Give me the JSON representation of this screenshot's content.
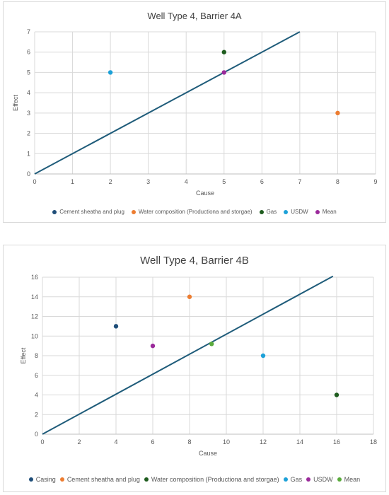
{
  "chart_data": [
    {
      "type": "scatter",
      "title": "Well Type 4, Barrier 4A",
      "xlabel": "Cause",
      "ylabel": "Effect",
      "xlim": [
        0,
        9
      ],
      "ylim": [
        0,
        7
      ],
      "xticks": [
        "0",
        "1",
        "2",
        "3",
        "4",
        "5",
        "6",
        "7",
        "8",
        "9"
      ],
      "yticks": [
        "0",
        "1",
        "2",
        "3",
        "4",
        "5",
        "6",
        "7"
      ],
      "grid": true,
      "legend_position": "bottom",
      "reference_line": {
        "x": [
          0,
          7
        ],
        "y": [
          0,
          7
        ],
        "color": "#1f5c7a"
      },
      "series": [
        {
          "name": "Cement sheatha and plug",
          "color": "#1f4e79",
          "points": []
        },
        {
          "name": "Water composition (Productiona and storgae)",
          "color": "#ed7d31",
          "points": [
            [
              8,
              3
            ]
          ]
        },
        {
          "name": "Gas",
          "color": "#1e5c1e",
          "points": [
            [
              5,
              6
            ]
          ]
        },
        {
          "name": "USDW",
          "color": "#1da1d8",
          "points": [
            [
              2,
              5
            ]
          ]
        },
        {
          "name": "Mean",
          "color": "#9b2a9b",
          "points": [
            [
              5,
              5
            ]
          ]
        }
      ]
    },
    {
      "type": "scatter",
      "title": "Well Type 4, Barrier 4B",
      "xlabel": "Cause",
      "ylabel": "Effect",
      "xlim": [
        0,
        18
      ],
      "ylim": [
        0,
        16
      ],
      "xticks": [
        "0",
        "2",
        "4",
        "6",
        "8",
        "10",
        "12",
        "14",
        "16",
        "18"
      ],
      "yticks": [
        "0",
        "2",
        "4",
        "6",
        "8",
        "10",
        "12",
        "14",
        "16"
      ],
      "grid": true,
      "legend_position": "bottom",
      "reference_line": {
        "x": [
          0,
          15.8
        ],
        "y": [
          0,
          16.1
        ],
        "color": "#1f5c7a"
      },
      "series": [
        {
          "name": "Casing",
          "color": "#1f4e79",
          "points": [
            [
              4,
              11
            ]
          ]
        },
        {
          "name": "Cement sheatha and plug",
          "color": "#ed7d31",
          "points": [
            [
              8,
              14
            ]
          ]
        },
        {
          "name": "Water composition (Productiona and storgae)",
          "color": "#1e5c1e",
          "points": [
            [
              16,
              4
            ]
          ]
        },
        {
          "name": "Gas",
          "color": "#1da1d8",
          "points": [
            [
              12,
              8
            ]
          ]
        },
        {
          "name": "USDW",
          "color": "#9b2a9b",
          "points": [
            [
              6,
              9
            ]
          ]
        },
        {
          "name": "Mean",
          "color": "#5aab3c",
          "points": [
            [
              9.2,
              9.2
            ]
          ]
        }
      ]
    }
  ]
}
